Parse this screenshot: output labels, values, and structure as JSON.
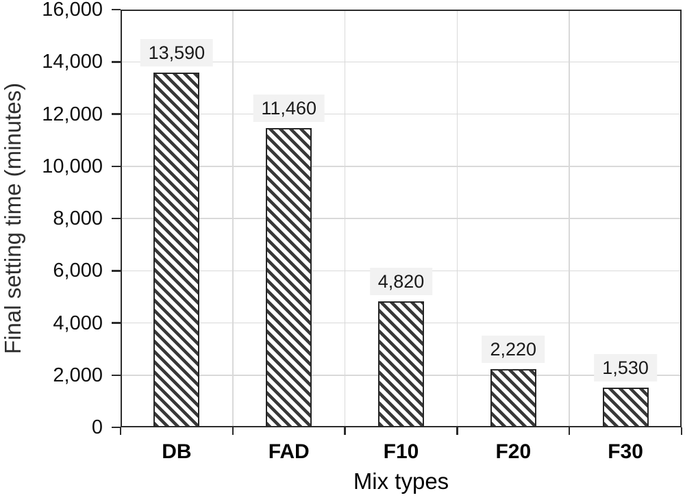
{
  "chart_data": {
    "type": "bar",
    "title": "",
    "categories": [
      "DB",
      "FAD",
      "F10",
      "F20",
      "F30"
    ],
    "values": [
      13590,
      11460,
      4820,
      2220,
      1530
    ],
    "value_labels": [
      "13,590",
      "11,460",
      "4,820",
      "2,220",
      "1,530"
    ],
    "xlabel": "Mix types",
    "ylabel": "Final setting time (minutes)",
    "ylim": [
      0,
      16000
    ],
    "ytick_step": 2000,
    "ytick_labels": [
      "0",
      "2,000",
      "4,000",
      "6,000",
      "8,000",
      "10,000",
      "12,000",
      "14,000",
      "16,000"
    ],
    "grid": {
      "horizontal": true,
      "vertical": true
    },
    "legend_position": "none",
    "bar_style": {
      "fill": "#ffffff",
      "hatch": "diagonal-down",
      "hatch_color": "#373737",
      "border_color": "#262626",
      "value_label_bg": "#f2f2f2",
      "value_label_color": "#1a1a1a"
    },
    "colors": {
      "axis": "#2b2b2b",
      "gridline": "#d9d9d9",
      "tick_label": "#111111",
      "category_label": "#000000",
      "axis_title": "#2e2e2e",
      "background": "#ffffff"
    }
  }
}
